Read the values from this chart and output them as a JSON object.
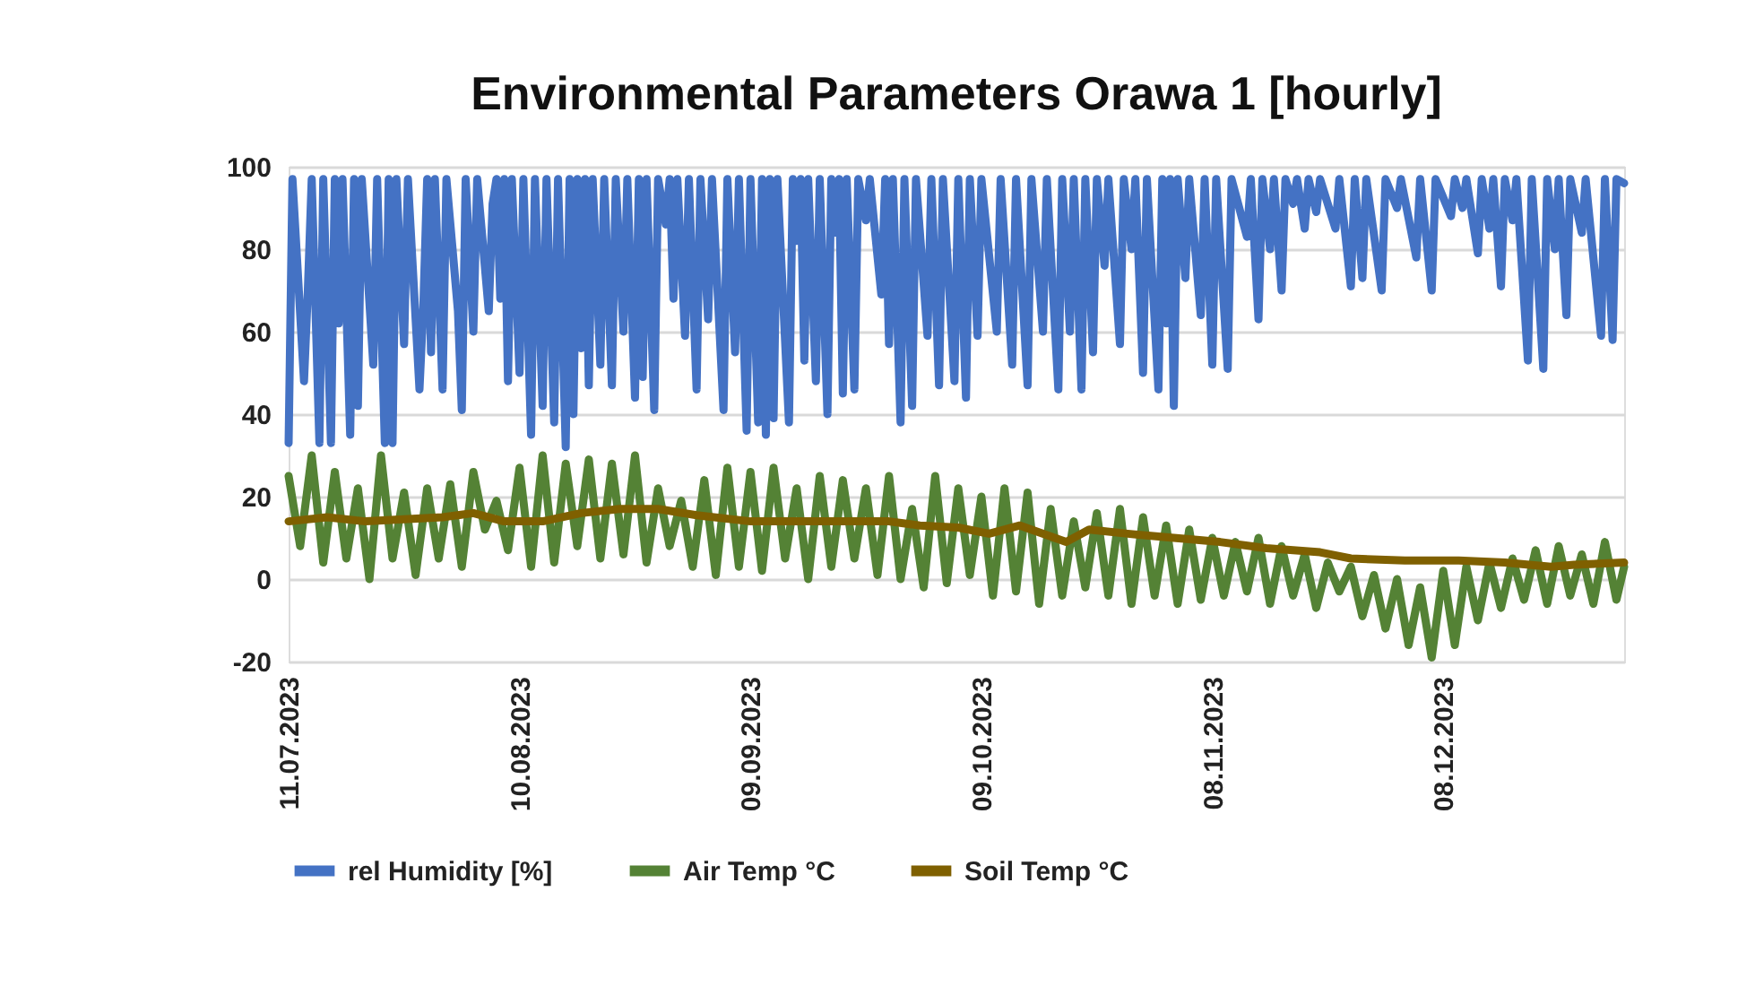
{
  "chart_data": {
    "type": "line",
    "title": "Environmental Parameters Orawa 1 [hourly]",
    "xlim": [
      "2023-07-11",
      "2023-12-31T12:00"
    ],
    "xticks": [
      {
        "value": "2023-07-11",
        "label": "11.07.2023"
      },
      {
        "value": "2023-08-10",
        "label": "10.08.2023"
      },
      {
        "value": "2023-09-09",
        "label": "09.09.2023"
      },
      {
        "value": "2023-10-09",
        "label": "09.10.2023"
      },
      {
        "value": "2023-11-08",
        "label": "08.11.2023"
      },
      {
        "value": "2023-12-08",
        "label": "08.12.2023"
      }
    ],
    "ylim": [
      -20,
      100
    ],
    "yticks": [
      -20,
      0,
      20,
      40,
      60,
      80,
      100
    ],
    "grid": "y",
    "legend": "bottom",
    "marker": "none",
    "line_style": "solid",
    "series": [
      {
        "name": "rel Humidity [%]",
        "color": "#4472c4",
        "x": [
          "2023-07-11T00:00",
          "2023-07-11T12:00",
          "2023-07-13T00:00",
          "2023-07-13T12:00",
          "2023-07-14T00:00",
          "2023-07-15T00:00",
          "2023-07-15T12:00",
          "2023-07-16T12:00",
          "2023-07-17T00:00",
          "2023-07-17T12:00",
          "2023-07-18T00:00",
          "2023-07-19T00:00",
          "2023-07-19T12:00",
          "2023-07-20T00:00",
          "2023-07-20T12:00",
          "2023-07-22T00:00",
          "2023-07-22T12:00",
          "2023-07-23T12:00",
          "2023-07-24T00:00",
          "2023-07-24T12:00",
          "2023-07-25T00:00",
          "2023-07-26T00:00",
          "2023-07-26T12:00",
          "2023-07-28T00:00",
          "2023-07-28T12:00",
          "2023-07-29T00:00",
          "2023-07-29T12:00",
          "2023-07-30T00:00",
          "2023-07-31T00:00",
          "2023-07-31T12:00",
          "2023-08-02T00:00",
          "2023-08-02T12:00",
          "2023-08-03T00:00",
          "2023-08-04T00:00",
          "2023-08-04T12:00",
          "2023-08-06T00:00",
          "2023-08-06T12:00",
          "2023-08-07T00:00",
          "2023-08-07T12:00",
          "2023-08-08T00:00",
          "2023-08-08T12:00",
          "2023-08-09T00:00",
          "2023-08-10T00:00",
          "2023-08-10T12:00",
          "2023-08-11T12:00",
          "2023-08-12T00:00",
          "2023-08-13T00:00",
          "2023-08-13T12:00",
          "2023-08-14T12:00",
          "2023-08-15T00:00",
          "2023-08-16T00:00",
          "2023-08-16T12:00",
          "2023-08-17T00:00",
          "2023-08-17T12:00",
          "2023-08-18T00:00",
          "2023-08-18T12:00",
          "2023-08-19T00:00",
          "2023-08-19T12:00",
          "2023-08-20T12:00",
          "2023-08-21T00:00",
          "2023-08-22T00:00",
          "2023-08-22T12:00",
          "2023-08-23T12:00",
          "2023-08-24T00:00",
          "2023-08-25T00:00",
          "2023-08-25T12:00",
          "2023-08-26T00:00",
          "2023-08-26T12:00",
          "2023-08-27T12:00",
          "2023-08-28T00:00",
          "2023-08-29T00:00",
          "2023-08-29T12:00",
          "2023-08-30T00:00",
          "2023-08-30T12:00",
          "2023-08-31T12:00",
          "2023-09-01T00:00",
          "2023-09-02T00:00",
          "2023-09-02T12:00",
          "2023-09-03T12:00",
          "2023-09-04T00:00",
          "2023-09-05T12:00",
          "2023-09-06T00:00",
          "2023-09-07T00:00",
          "2023-09-07T12:00",
          "2023-09-08T12:00",
          "2023-09-09T00:00",
          "2023-09-10T00:00",
          "2023-09-10T12:00",
          "2023-09-11T00:00",
          "2023-09-11T12:00",
          "2023-09-12T00:00",
          "2023-09-12T12:00",
          "2023-09-14T00:00",
          "2023-09-14T12:00",
          "2023-09-15T00:00",
          "2023-09-15T12:00",
          "2023-09-16T00:00",
          "2023-09-16T12:00",
          "2023-09-17T12:00",
          "2023-09-18T00:00",
          "2023-09-19T00:00",
          "2023-09-19T12:00",
          "2023-09-20T00:00",
          "2023-09-20T12:00",
          "2023-09-21T00:00",
          "2023-09-21T12:00",
          "2023-09-22T12:00",
          "2023-09-23T00:00",
          "2023-09-24T00:00",
          "2023-09-24T12:00",
          "2023-09-26T00:00",
          "2023-09-26T12:00",
          "2023-09-27T00:00",
          "2023-09-27T12:00",
          "2023-09-28T12:00",
          "2023-09-29T00:00",
          "2023-09-30T00:00",
          "2023-09-30T12:00",
          "2023-10-02T00:00",
          "2023-10-02T12:00",
          "2023-10-03T12:00",
          "2023-10-04T00:00",
          "2023-10-05T12:00",
          "2023-10-06T00:00",
          "2023-10-07T00:00",
          "2023-10-07T12:00",
          "2023-10-08T12:00",
          "2023-10-09T00:00",
          "2023-10-11T00:00",
          "2023-10-11T12:00",
          "2023-10-13T00:00",
          "2023-10-13T12:00",
          "2023-10-15T00:00",
          "2023-10-15T12:00",
          "2023-10-17T00:00",
          "2023-10-17T12:00",
          "2023-10-19T00:00",
          "2023-10-19T12:00",
          "2023-10-20T12:00",
          "2023-10-21T00:00",
          "2023-10-22T00:00",
          "2023-10-22T12:00",
          "2023-10-23T12:00",
          "2023-10-24T00:00",
          "2023-10-25T00:00",
          "2023-10-25T12:00",
          "2023-10-27T00:00",
          "2023-10-27T12:00",
          "2023-10-28T12:00",
          "2023-10-29T00:00",
          "2023-10-30T00:00",
          "2023-10-30T12:00",
          "2023-11-01T00:00",
          "2023-11-01T12:00",
          "2023-11-02T00:00",
          "2023-11-02T12:00",
          "2023-11-03T00:00",
          "2023-11-03T12:00",
          "2023-11-04T12:00",
          "2023-11-05T00:00",
          "2023-11-06T12:00",
          "2023-11-07T00:00",
          "2023-11-08T00:00",
          "2023-11-08T12:00",
          "2023-11-10T00:00",
          "2023-11-10T12:00",
          "2023-11-12T12:00",
          "2023-11-13T00:00",
          "2023-11-14T00:00",
          "2023-11-14T12:00",
          "2023-11-15T12:00",
          "2023-11-16T00:00",
          "2023-11-17T00:00",
          "2023-11-17T12:00",
          "2023-11-18T12:00",
          "2023-11-19T00:00",
          "2023-11-20T00:00",
          "2023-11-20T12:00",
          "2023-11-21T12:00",
          "2023-11-22T00:00",
          "2023-11-24T00:00",
          "2023-11-24T12:00",
          "2023-11-26T00:00",
          "2023-11-26T12:00",
          "2023-11-27T12:00",
          "2023-11-28T00:00",
          "2023-11-30T00:00",
          "2023-11-30T12:00",
          "2023-12-02T00:00",
          "2023-12-02T12:00",
          "2023-12-04T12:00",
          "2023-12-05T00:00",
          "2023-12-06T12:00",
          "2023-12-07T00:00",
          "2023-12-09T00:00",
          "2023-12-09T12:00",
          "2023-12-10T12:00",
          "2023-12-11T00:00",
          "2023-12-12T12:00",
          "2023-12-13T00:00",
          "2023-12-14T00:00",
          "2023-12-14T12:00",
          "2023-12-15T12:00",
          "2023-12-16T00:00",
          "2023-12-17T00:00",
          "2023-12-17T12:00",
          "2023-12-19T00:00",
          "2023-12-19T12:00",
          "2023-12-21T00:00",
          "2023-12-21T12:00",
          "2023-12-22T12:00",
          "2023-12-23T00:00",
          "2023-12-24T00:00",
          "2023-12-24T12:00",
          "2023-12-26T00:00",
          "2023-12-26T12:00",
          "2023-12-28T12:00",
          "2023-12-29T00:00",
          "2023-12-30T00:00",
          "2023-12-30T12:00",
          "2023-12-31T12:00"
        ],
        "values": [
          33,
          97,
          48,
          70,
          97,
          33,
          97,
          33,
          97,
          62,
          97,
          35,
          97,
          42,
          97,
          52,
          97,
          33,
          97,
          33,
          97,
          57,
          97,
          46,
          66,
          97,
          55,
          97,
          46,
          97,
          65,
          41,
          97,
          60,
          97,
          65,
          91,
          97,
          68,
          97,
          48,
          97,
          50,
          97,
          35,
          97,
          42,
          97,
          38,
          97,
          32,
          97,
          40,
          97,
          56,
          97,
          47,
          97,
          52,
          97,
          47,
          97,
          60,
          97,
          44,
          97,
          49,
          97,
          41,
          97,
          86,
          97,
          68,
          97,
          59,
          97,
          46,
          97,
          63,
          97,
          41,
          97,
          55,
          97,
          36,
          97,
          38,
          97,
          35,
          97,
          39,
          97,
          38,
          97,
          82,
          97,
          53,
          97,
          48,
          97,
          40,
          97,
          84,
          97,
          45,
          97,
          46,
          97,
          87,
          97,
          69,
          97,
          57,
          97,
          38,
          97,
          42,
          97,
          59,
          97,
          47,
          97,
          48,
          97,
          44,
          97,
          59,
          97,
          60,
          97,
          52,
          97,
          47,
          97,
          60,
          97,
          46,
          97,
          60,
          97,
          46,
          97,
          55,
          97,
          76,
          97,
          57,
          97,
          80,
          97,
          50,
          97,
          46,
          97,
          62,
          97,
          42,
          97,
          73,
          97,
          64,
          97,
          52,
          97,
          51,
          97,
          83,
          97,
          63,
          97,
          80,
          97,
          70,
          97,
          91,
          97,
          85,
          97,
          89,
          97,
          85,
          97,
          71,
          97,
          73,
          97,
          70,
          97,
          90,
          97,
          78,
          97,
          70,
          97,
          88,
          97,
          90,
          97,
          79,
          97,
          85,
          97,
          71,
          97,
          87,
          97,
          53,
          97,
          51,
          97,
          80,
          97,
          64,
          97,
          84,
          97,
          59,
          97,
          58,
          97,
          96
        ]
      },
      {
        "name": "Air Temp °C",
        "color": "#548235",
        "x": [
          "2023-07-11T00:00",
          "2023-07-12T12:00",
          "2023-07-14T00:00",
          "2023-07-15T12:00",
          "2023-07-17T00:00",
          "2023-07-18T12:00",
          "2023-07-20T00:00",
          "2023-07-21T12:00",
          "2023-07-23T00:00",
          "2023-07-24T12:00",
          "2023-07-26T00:00",
          "2023-07-27T12:00",
          "2023-07-29T00:00",
          "2023-07-30T12:00",
          "2023-08-01T00:00",
          "2023-08-02T12:00",
          "2023-08-04T00:00",
          "2023-08-05T12:00",
          "2023-08-07T00:00",
          "2023-08-08T12:00",
          "2023-08-10T00:00",
          "2023-08-11T12:00",
          "2023-08-13T00:00",
          "2023-08-14T12:00",
          "2023-08-16T00:00",
          "2023-08-17T12:00",
          "2023-08-19T00:00",
          "2023-08-20T12:00",
          "2023-08-22T00:00",
          "2023-08-23T12:00",
          "2023-08-25T00:00",
          "2023-08-26T12:00",
          "2023-08-28T00:00",
          "2023-08-29T12:00",
          "2023-08-31T00:00",
          "2023-09-01T12:00",
          "2023-09-03T00:00",
          "2023-09-04T12:00",
          "2023-09-06T00:00",
          "2023-09-07T12:00",
          "2023-09-09T00:00",
          "2023-09-10T12:00",
          "2023-09-12T00:00",
          "2023-09-13T12:00",
          "2023-09-15T00:00",
          "2023-09-16T12:00",
          "2023-09-18T00:00",
          "2023-09-19T12:00",
          "2023-09-21T00:00",
          "2023-09-22T12:00",
          "2023-09-24T00:00",
          "2023-09-25T12:00",
          "2023-09-27T00:00",
          "2023-09-28T12:00",
          "2023-09-30T00:00",
          "2023-10-01T12:00",
          "2023-10-03T00:00",
          "2023-10-04T12:00",
          "2023-10-06T00:00",
          "2023-10-07T12:00",
          "2023-10-09T00:00",
          "2023-10-10T12:00",
          "2023-10-12T00:00",
          "2023-10-13T12:00",
          "2023-10-15T00:00",
          "2023-10-16T12:00",
          "2023-10-18T00:00",
          "2023-10-19T12:00",
          "2023-10-21T00:00",
          "2023-10-22T12:00",
          "2023-10-24T00:00",
          "2023-10-25T12:00",
          "2023-10-27T00:00",
          "2023-10-28T12:00",
          "2023-10-30T00:00",
          "2023-10-31T12:00",
          "2023-11-02T00:00",
          "2023-11-03T12:00",
          "2023-11-05T00:00",
          "2023-11-06T12:00",
          "2023-11-08T00:00",
          "2023-11-09T12:00",
          "2023-11-11T00:00",
          "2023-11-12T12:00",
          "2023-11-14T00:00",
          "2023-11-15T12:00",
          "2023-11-17T00:00",
          "2023-11-18T12:00",
          "2023-11-20T00:00",
          "2023-11-21T12:00",
          "2023-11-23T00:00",
          "2023-11-24T12:00",
          "2023-11-26T00:00",
          "2023-11-27T12:00",
          "2023-11-29T00:00",
          "2023-11-30T12:00",
          "2023-12-02T00:00",
          "2023-12-03T12:00",
          "2023-12-05T00:00",
          "2023-12-06T12:00",
          "2023-12-08T00:00",
          "2023-12-09T12:00",
          "2023-12-11T00:00",
          "2023-12-12T12:00",
          "2023-12-14T00:00",
          "2023-12-15T12:00",
          "2023-12-17T00:00",
          "2023-12-18T12:00",
          "2023-12-20T00:00",
          "2023-12-21T12:00",
          "2023-12-23T00:00",
          "2023-12-24T12:00",
          "2023-12-26T00:00",
          "2023-12-27T12:00",
          "2023-12-29T00:00",
          "2023-12-30T12:00",
          "2023-12-31T12:00"
        ],
        "values": [
          25,
          8,
          30,
          4,
          26,
          5,
          22,
          0,
          30,
          5,
          21,
          1,
          22,
          5,
          23,
          3,
          26,
          12,
          19,
          7,
          27,
          3,
          30,
          4,
          28,
          8,
          29,
          5,
          28,
          6,
          30,
          4,
          22,
          8,
          19,
          3,
          24,
          1,
          27,
          3,
          26,
          2,
          27,
          5,
          22,
          0,
          25,
          3,
          24,
          5,
          22,
          1,
          25,
          0,
          17,
          -2,
          25,
          -1,
          22,
          1,
          20,
          -4,
          22,
          -3,
          21,
          -6,
          17,
          -4,
          14,
          -2,
          16,
          -4,
          17,
          -6,
          15,
          -4,
          13,
          -6,
          12,
          -5,
          10,
          -4,
          9,
          -3,
          10,
          -6,
          8,
          -4,
          6,
          -7,
          4,
          -3,
          3,
          -9,
          1,
          -12,
          0,
          -16,
          -2,
          -19,
          2,
          -16,
          3,
          -10,
          4,
          -7,
          5,
          -5,
          7,
          -6,
          8,
          -4,
          6,
          -6,
          9,
          -5,
          3
        ]
      },
      {
        "name": "Soil Temp °C",
        "color": "#7f6000",
        "x": [
          "2023-07-11T00:00",
          "2023-07-16T00:00",
          "2023-07-21T00:00",
          "2023-07-26T00:00",
          "2023-07-31T00:00",
          "2023-08-04T00:00",
          "2023-08-08T00:00",
          "2023-08-13T00:00",
          "2023-08-18T00:00",
          "2023-08-23T00:00",
          "2023-08-28T00:00",
          "2023-09-02T00:00",
          "2023-09-09T00:00",
          "2023-09-15T00:00",
          "2023-09-21T00:00",
          "2023-09-27T00:00",
          "2023-10-01T00:00",
          "2023-10-06T00:00",
          "2023-10-10T00:00",
          "2023-10-14T00:00",
          "2023-10-20T00:00",
          "2023-10-23T00:00",
          "2023-10-28T00:00",
          "2023-11-03T00:00",
          "2023-11-09T00:00",
          "2023-11-15T00:00",
          "2023-11-22T00:00",
          "2023-11-26T00:00",
          "2023-12-03T00:00",
          "2023-12-10T00:00",
          "2023-12-16T00:00",
          "2023-12-22T00:00",
          "2023-12-25T00:00",
          "2023-12-31T12:00"
        ],
        "values": [
          14,
          15,
          14,
          14.5,
          15,
          16,
          14,
          14,
          16,
          17,
          17,
          15.5,
          14,
          14,
          14,
          14,
          13,
          12.5,
          11,
          13,
          9,
          12,
          11,
          10,
          9,
          7.5,
          6.5,
          5,
          4.5,
          4.5,
          4,
          3,
          3.5,
          4
        ]
      }
    ]
  }
}
